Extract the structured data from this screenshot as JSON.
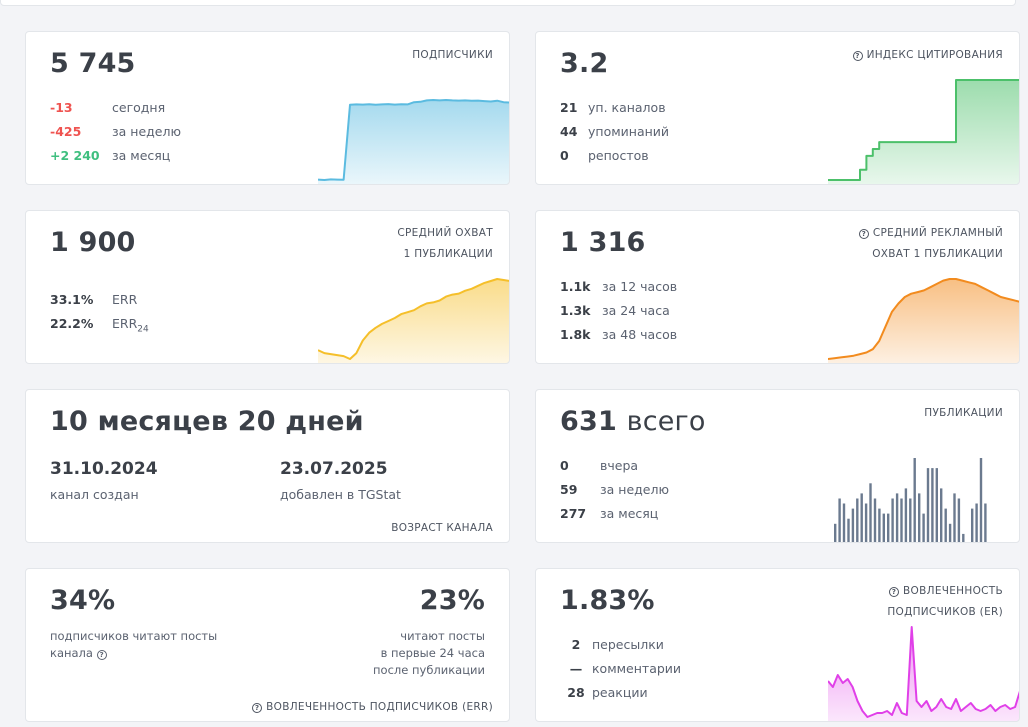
{
  "subscribers": {
    "value": "5 745",
    "label": "ПОДПИСЧИКИ",
    "stats": [
      {
        "value": "-13",
        "text": "сегодня",
        "tone": "neg"
      },
      {
        "value": "-425",
        "text": "за неделю",
        "tone": "neg"
      },
      {
        "value": "+2 240",
        "text": "за месяц",
        "tone": "pos"
      }
    ],
    "color": "#5bbbe0"
  },
  "citation": {
    "value": "3.2",
    "label": "ИНДЕКС ЦИТИРОВАНИЯ",
    "stats": [
      {
        "value": "21",
        "text": "уп. каналов"
      },
      {
        "value": "44",
        "text": "упоминаний"
      },
      {
        "value": "0",
        "text": "репостов"
      }
    ],
    "color": "#4cc06a"
  },
  "reach": {
    "value": "1 900",
    "label_line1": "СРЕДНИЙ ОХВАТ",
    "label_line2": "1 ПУБЛИКАЦИИ",
    "err_value": "33.1%",
    "err_label": "ERR",
    "err24_value": "22.2%",
    "err24_label": "ERR",
    "err24_sub": "24",
    "color": "#f5bf2a"
  },
  "ad_reach": {
    "value": "1 316",
    "label_line1": "СРЕДНИЙ РЕКЛАМНЫЙ",
    "label_line2": "ОХВАТ 1 ПУБЛИКАЦИИ",
    "stats": [
      {
        "value": "1.1k",
        "text": "за 12 часов"
      },
      {
        "value": "1.3k",
        "text": "за 24 часа"
      },
      {
        "value": "1.8k",
        "text": "за 48 часов"
      }
    ],
    "color": "#f28b1e"
  },
  "age": {
    "value": "10 месяцев 20 дней",
    "created_date": "31.10.2024",
    "created_label": "канал создан",
    "added_date": "23.07.2025",
    "added_label": "добавлен в TGStat",
    "label": "ВОЗРАСТ КАНАЛА"
  },
  "posts": {
    "value": "631",
    "value_suffix": "всего",
    "label": "ПУБЛИКАЦИИ",
    "stats": [
      {
        "value": "0",
        "text": "вчера"
      },
      {
        "value": "59",
        "text": "за неделю"
      },
      {
        "value": "277",
        "text": "за месяц"
      }
    ],
    "color": "#6b7a8f"
  },
  "err_card": {
    "left_value": "34%",
    "left_text_line1": "подписчиков читают посты",
    "left_text_line2": "канала",
    "right_value": "23%",
    "right_text_line1": "читают посты",
    "right_text_line2": "в первые 24 часа",
    "right_text_line3": "после публикации",
    "label": "ВОВЛЕЧЕННОСТЬ ПОДПИСЧИКОВ (ERR)"
  },
  "er_card": {
    "value": "1.83%",
    "label_line1": "ВОВЛЕЧЕННОСТЬ",
    "label_line2": "ПОДПИСЧИКОВ (ER)",
    "stats": [
      {
        "value": "2",
        "text": "пересылки"
      },
      {
        "value": "—",
        "text": "комментарии"
      },
      {
        "value": "28",
        "text": "реакции"
      }
    ],
    "color": "#e040e8"
  },
  "chart_data": [
    {
      "type": "area",
      "title": "ПОДПИСЧИКИ",
      "x": [
        0,
        1,
        2,
        3,
        4,
        5,
        6,
        7,
        8,
        9,
        10,
        11,
        12,
        13,
        14,
        15,
        16,
        17,
        18,
        19,
        20,
        21,
        22,
        23,
        24,
        25,
        26,
        27,
        28,
        29,
        30
      ],
      "values": [
        3500,
        3490,
        3505,
        3500,
        3495,
        5530,
        5540,
        5535,
        5545,
        5530,
        5540,
        5550,
        5535,
        5545,
        5540,
        5600,
        5610,
        5650,
        5660,
        5650,
        5660,
        5650,
        5645,
        5650,
        5640,
        5645,
        5630,
        5620,
        5640,
        5600,
        5590
      ]
    },
    {
      "type": "area",
      "title": "ИНДЕКС ЦИТИРОВАНИЯ",
      "x": [
        0,
        1,
        2,
        3,
        4,
        5,
        6,
        7,
        8,
        9,
        10,
        11,
        12,
        13,
        14,
        15,
        16,
        17,
        18,
        19,
        20,
        21,
        22,
        23,
        24,
        25,
        26,
        27,
        28,
        29,
        30
      ],
      "values": [
        0,
        0,
        0,
        0,
        0,
        0.3,
        0.7,
        0.9,
        1.1,
        1.1,
        1.1,
        1.1,
        1.1,
        1.1,
        1.1,
        1.1,
        1.1,
        1.1,
        1.1,
        1.1,
        2.9,
        2.9,
        2.9,
        2.9,
        2.9,
        2.9,
        2.9,
        2.9,
        2.9,
        2.9,
        2.9
      ]
    },
    {
      "type": "area",
      "title": "СРЕДНИЙ ОХВАТ 1 ПУБЛИКАЦИИ",
      "x": [
        0,
        1,
        2,
        3,
        4,
        5,
        6,
        7,
        8,
        9,
        10,
        11,
        12,
        13,
        14,
        15,
        16,
        17,
        18,
        19,
        20,
        21,
        22,
        23,
        24,
        25,
        26,
        27,
        28,
        29,
        30
      ],
      "values": [
        1150,
        1120,
        1110,
        1100,
        1090,
        1060,
        1120,
        1250,
        1330,
        1380,
        1420,
        1450,
        1480,
        1520,
        1540,
        1560,
        1600,
        1630,
        1640,
        1660,
        1700,
        1720,
        1730,
        1760,
        1780,
        1810,
        1840,
        1860,
        1880,
        1870,
        1860
      ]
    },
    {
      "type": "area",
      "title": "СРЕДНИЙ РЕКЛАМНЫЙ ОХВАТ 1 ПУБЛИКАЦИИ",
      "x": [
        0,
        1,
        2,
        3,
        4,
        5,
        6,
        7,
        8,
        9,
        10,
        11,
        12,
        13,
        14,
        15,
        16,
        17,
        18,
        19,
        20,
        21,
        22,
        23,
        24,
        25,
        26,
        27,
        28,
        29,
        30
      ],
      "values": [
        1000,
        1005,
        1010,
        1015,
        1020,
        1030,
        1040,
        1060,
        1110,
        1200,
        1290,
        1340,
        1380,
        1400,
        1410,
        1420,
        1440,
        1460,
        1480,
        1490,
        1490,
        1480,
        1470,
        1460,
        1440,
        1420,
        1400,
        1380,
        1370,
        1360,
        1350
      ]
    },
    {
      "type": "bar",
      "title": "ПУБЛИКАЦИИ",
      "categories": [
        "1",
        "2",
        "3",
        "4",
        "5",
        "6",
        "7",
        "8",
        "9",
        "10",
        "11",
        "12",
        "13",
        "14",
        "15",
        "16",
        "17",
        "18",
        "19",
        "20",
        "21",
        "22",
        "23",
        "24",
        "25",
        "26",
        "27",
        "28",
        "29",
        "30",
        "31",
        "32",
        "33",
        "34",
        "35",
        "36",
        "37",
        "38",
        "39",
        "40",
        "41",
        "42",
        "43"
      ],
      "values": [
        4,
        9,
        8,
        5,
        7,
        9,
        10,
        8,
        12,
        9,
        7,
        6,
        6,
        9,
        10,
        9,
        11,
        9,
        17,
        10,
        6,
        15,
        15,
        15,
        11,
        7,
        4,
        10,
        9,
        2,
        0,
        7,
        8,
        17,
        8,
        0,
        0,
        0,
        0,
        0,
        0,
        0,
        0
      ]
    },
    {
      "type": "area",
      "title": "ВОВЛЕЧЕННОСТЬ ПОДПИСЧИКОВ (ER)",
      "x": [
        0,
        1,
        2,
        3,
        4,
        5,
        6,
        7,
        8,
        9,
        10,
        11,
        12,
        13,
        14,
        15,
        16,
        17,
        18,
        19,
        20,
        21,
        22,
        23,
        24,
        25,
        26,
        27,
        28,
        29,
        30,
        31,
        32,
        33,
        34,
        35,
        36,
        37,
        38,
        39
      ],
      "values": [
        3.3,
        3.0,
        3.6,
        3.2,
        3.4,
        3.0,
        2.3,
        1.8,
        1.5,
        1.6,
        1.7,
        1.7,
        1.8,
        1.6,
        2.2,
        1.7,
        1.6,
        6.0,
        2.3,
        2.0,
        2.3,
        1.8,
        2.0,
        2.4,
        2.0,
        1.9,
        2.4,
        1.8,
        2.0,
        2.2,
        1.9,
        1.8,
        1.9,
        2.1,
        1.8,
        2.0,
        2.1,
        1.9,
        2.0,
        2.8
      ]
    }
  ]
}
